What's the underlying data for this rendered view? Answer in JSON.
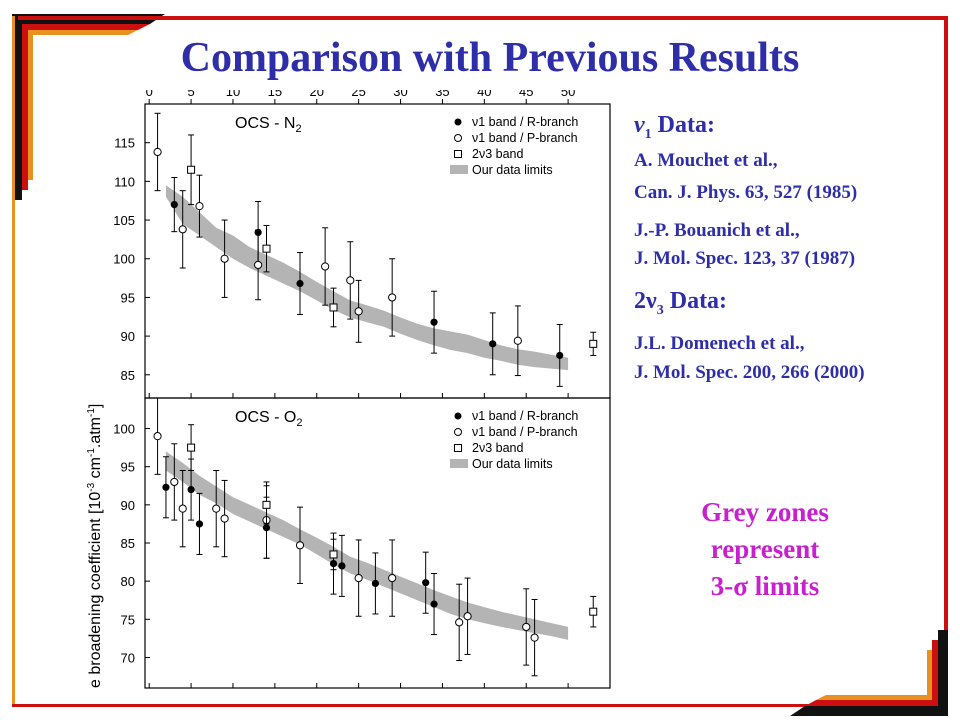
{
  "title": "Comparison with Previous Results",
  "references": {
    "v1_heading_symbol": "ν",
    "v1_heading_sub": "1",
    "v1_heading_rest": " Data:",
    "ref1_line1": "A. Mouchet et al.,",
    "ref1_line2": "Can. J. Phys. 63, 527 (1985)",
    "ref2_line1": "J.-P.  Bouanich et al.,",
    "ref2_line2": "J. Mol. Spec. 123, 37 (1987)",
    "v3_heading_pre": "2ν",
    "v3_heading_sub": "3",
    "v3_heading_rest": " Data:",
    "ref3_line1": "J.L. Domenech et al.,",
    "ref3_line2": "J. Mol. Spec. 200, 266 (2000)"
  },
  "note": {
    "line1": "Grey zones",
    "line2": "represent",
    "line3": "3-σ limits"
  },
  "colors": {
    "title": "#2e2ea8",
    "note": "#c81fcf",
    "frame_dark": "#111111",
    "frame_red": "#cc1010",
    "frame_orange": "#e89020",
    "band_grey": "#b4b4b4"
  },
  "chart_data": [
    {
      "type": "scatter",
      "panel_label": "OCS - N",
      "panel_label_sub": "2",
      "x_ticks": [
        0,
        5,
        10,
        15,
        20,
        25,
        30,
        35,
        40,
        45,
        50
      ],
      "xlim": [
        -0.5,
        55
      ],
      "ylim": [
        82,
        120
      ],
      "y_ticks": [
        85,
        90,
        95,
        100,
        105,
        110,
        115
      ],
      "legend": [
        "ν1 band / R-branch",
        "ν1 band / P-branch",
        "2ν3 band",
        "Our data limits"
      ],
      "series": [
        {
          "name": "ν1 band / R-branch",
          "marker": "filled-circle",
          "points": [
            {
              "x": 3,
              "y": 107,
              "err": 3.5
            },
            {
              "x": 13,
              "y": 103.4,
              "err": 4
            },
            {
              "x": 18,
              "y": 96.8,
              "err": 4
            },
            {
              "x": 34,
              "y": 91.8,
              "err": 4
            },
            {
              "x": 41,
              "y": 89,
              "err": 4
            },
            {
              "x": 49,
              "y": 87.5,
              "err": 4
            }
          ]
        },
        {
          "name": "ν1 band / P-branch",
          "marker": "open-circle",
          "points": [
            {
              "x": 1,
              "y": 113.8,
              "err": 5
            },
            {
              "x": 4,
              "y": 103.8,
              "err": 5
            },
            {
              "x": 6,
              "y": 106.8,
              "err": 4
            },
            {
              "x": 9,
              "y": 100,
              "err": 5
            },
            {
              "x": 13,
              "y": 99.2,
              "err": 4.5
            },
            {
              "x": 21,
              "y": 99,
              "err": 5
            },
            {
              "x": 24,
              "y": 97.2,
              "err": 5
            },
            {
              "x": 25,
              "y": 93.2,
              "err": 4
            },
            {
              "x": 29,
              "y": 95,
              "err": 5
            },
            {
              "x": 44,
              "y": 89.4,
              "err": 4.5
            }
          ]
        },
        {
          "name": "2ν3 band",
          "marker": "open-square",
          "points": [
            {
              "x": 5,
              "y": 111.5,
              "err": 4.5
            },
            {
              "x": 14,
              "y": 101.3,
              "err": 3
            },
            {
              "x": 22,
              "y": 93.7,
              "err": 2.5
            },
            {
              "x": 53,
              "y": 89,
              "err": 1.5
            }
          ]
        }
      ],
      "band": {
        "name": "Our data limits",
        "x": [
          2,
          4,
          6,
          8,
          10,
          12,
          14,
          16,
          18,
          20,
          22,
          24,
          26,
          28,
          30,
          32,
          34,
          36,
          38,
          40,
          42,
          44,
          46,
          48,
          50
        ],
        "lower": [
          108,
          104.5,
          103,
          101.5,
          100,
          98.8,
          97.8,
          96.8,
          95.8,
          94.6,
          93.4,
          92.4,
          91.8,
          91.2,
          90.3,
          89.5,
          88.8,
          88.2,
          87.8,
          87.2,
          86.8,
          86.3,
          86,
          85.8,
          85.6
        ],
        "upper": [
          109.5,
          108,
          106,
          104,
          103,
          101.5,
          100.5,
          99.5,
          98.3,
          97,
          95.8,
          94.6,
          94,
          93.3,
          92.4,
          91.6,
          91,
          90.6,
          90.2,
          89.5,
          88.8,
          88.3,
          88,
          87.6,
          87.2
        ]
      }
    },
    {
      "type": "scatter",
      "panel_label": "OCS - O",
      "panel_label_sub": "2",
      "xlim": [
        -0.5,
        55
      ],
      "ylim": [
        66,
        104
      ],
      "y_ticks": [
        70,
        75,
        80,
        85,
        90,
        95,
        100
      ],
      "ylabel_visible": "e broadening coefficient [10",
      "ylabel_sup1": "-3",
      "ylabel_mid": " cm",
      "ylabel_sup2": "-1",
      "ylabel_mid2": ".atm",
      "ylabel_sup3": "-1",
      "ylabel_end": "]",
      "legend": [
        "ν1 band / R-branch",
        "ν1 band / P-branch",
        "2ν3 band",
        "Our data limits"
      ],
      "series": [
        {
          "name": "ν1 band / R-branch",
          "marker": "filled-circle",
          "points": [
            {
              "x": 2,
              "y": 92.3,
              "err": 4
            },
            {
              "x": 5,
              "y": 92,
              "err": 4
            },
            {
              "x": 6,
              "y": 87.5,
              "err": 4
            },
            {
              "x": 14,
              "y": 87,
              "err": 4
            },
            {
              "x": 22,
              "y": 82.3,
              "err": 4
            },
            {
              "x": 23,
              "y": 82,
              "err": 4
            },
            {
              "x": 27,
              "y": 79.7,
              "err": 4
            },
            {
              "x": 33,
              "y": 79.8,
              "err": 4
            },
            {
              "x": 34,
              "y": 77,
              "err": 4
            }
          ]
        },
        {
          "name": "ν1 band / P-branch",
          "marker": "open-circle",
          "points": [
            {
              "x": 1,
              "y": 99,
              "err": 5
            },
            {
              "x": 3,
              "y": 93,
              "err": 5
            },
            {
              "x": 4,
              "y": 89.5,
              "err": 5
            },
            {
              "x": 8,
              "y": 89.5,
              "err": 5
            },
            {
              "x": 9,
              "y": 88.2,
              "err": 5
            },
            {
              "x": 14,
              "y": 88,
              "err": 5
            },
            {
              "x": 18,
              "y": 84.7,
              "err": 5
            },
            {
              "x": 25,
              "y": 80.4,
              "err": 5
            },
            {
              "x": 29,
              "y": 80.4,
              "err": 5
            },
            {
              "x": 37,
              "y": 74.6,
              "err": 5
            },
            {
              "x": 38,
              "y": 75.4,
              "err": 5
            },
            {
              "x": 45,
              "y": 74,
              "err": 5
            },
            {
              "x": 46,
              "y": 72.6,
              "err": 5
            }
          ]
        },
        {
          "name": "2ν3 band",
          "marker": "open-square",
          "points": [
            {
              "x": 5,
              "y": 97.5,
              "err": 3
            },
            {
              "x": 14,
              "y": 90,
              "err": 2.5
            },
            {
              "x": 22,
              "y": 83.5,
              "err": 2
            },
            {
              "x": 53,
              "y": 76,
              "err": 2
            }
          ]
        }
      ],
      "band": {
        "name": "Our data limits",
        "x": [
          2,
          4,
          6,
          8,
          10,
          12,
          14,
          16,
          18,
          20,
          22,
          24,
          26,
          28,
          30,
          32,
          34,
          36,
          38,
          40,
          42,
          44,
          46,
          48,
          50
        ],
        "lower": [
          94.5,
          93,
          91.3,
          90.2,
          88.8,
          87.8,
          86.8,
          85.8,
          84.8,
          83.5,
          82.2,
          81,
          80.2,
          79.3,
          78.4,
          77.5,
          76.6,
          75.7,
          75,
          74.5,
          74,
          73.6,
          73.2,
          72.8,
          72.3
        ],
        "upper": [
          97,
          95.5,
          93.8,
          92.4,
          91,
          90,
          89,
          88,
          86.8,
          85.7,
          84.5,
          83.2,
          82.4,
          81.5,
          80.6,
          79.7,
          78.8,
          78,
          77.2,
          76.6,
          76,
          75.5,
          75,
          74.5,
          74
        ]
      }
    }
  ]
}
